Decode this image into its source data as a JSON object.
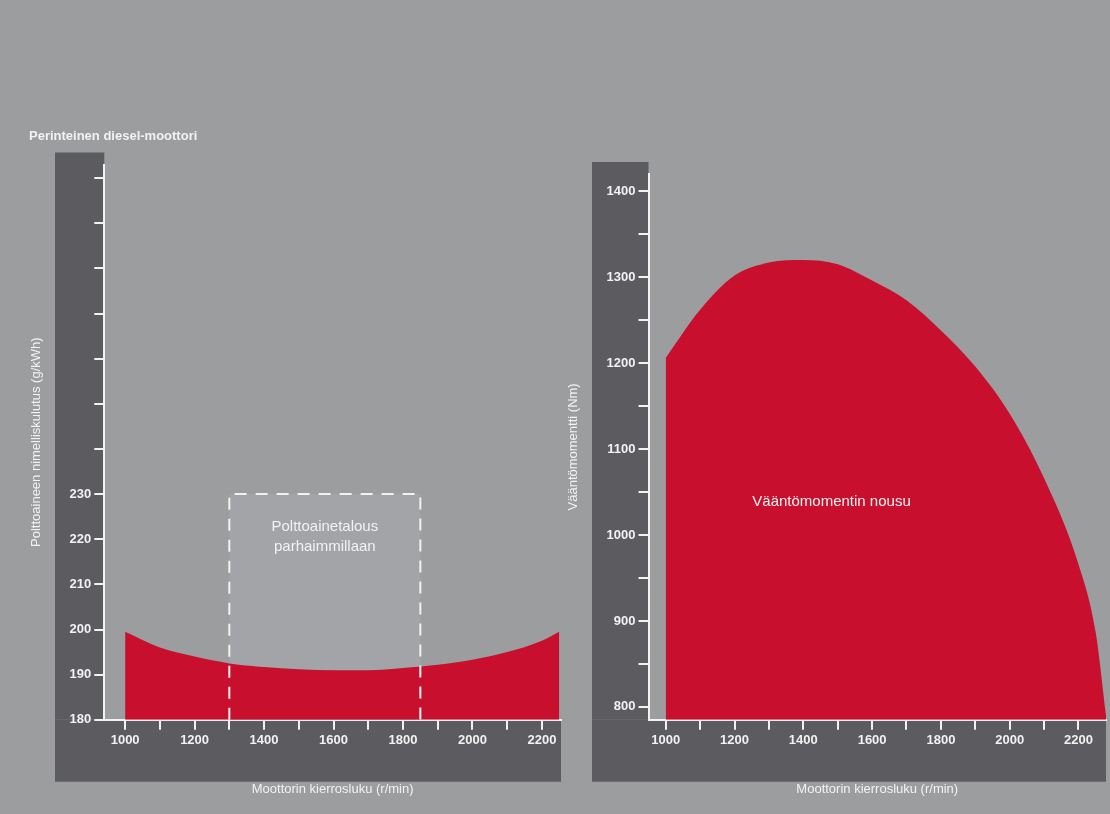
{
  "chart_data": [
    {
      "type": "area",
      "title": "Perinteinen diesel-moottori",
      "xlabel": "Moottorin kierrosluku (r/min)",
      "ylabel": "Polttoaineen nimelliskulutus (g/kWh)",
      "x": [
        1000,
        1100,
        1200,
        1300,
        1400,
        1500,
        1600,
        1700,
        1800,
        1900,
        2000,
        2100,
        2200,
        2250
      ],
      "values": [
        199.5,
        196,
        194,
        192.5,
        191.7,
        191.2,
        191,
        191,
        191.5,
        192.2,
        193.3,
        195,
        197.5,
        199.5
      ],
      "color": "#c8102e",
      "grid": false,
      "xlim": [
        940,
        2255
      ],
      "ylim": [
        180,
        303
      ],
      "xticks": [
        1000,
        {
          "value": 1100,
          "label": null
        },
        1200,
        {
          "value": 1300,
          "label": null
        },
        1400,
        {
          "value": 1500,
          "label": null
        },
        1600,
        {
          "value": 1700,
          "label": null
        },
        1800,
        {
          "value": 1900,
          "label": null
        },
        2000,
        {
          "value": 2100,
          "label": null
        },
        2200
      ],
      "yticks": [
        180,
        190,
        200,
        210,
        220,
        230,
        {
          "value": 240,
          "label": null
        },
        {
          "value": 250,
          "label": null
        },
        {
          "value": 260,
          "label": null
        },
        {
          "value": 270,
          "label": null
        },
        {
          "value": 280,
          "label": null
        },
        {
          "value": 290,
          "label": null
        },
        {
          "value": 300,
          "label": null
        }
      ],
      "bands": [
        {
          "axis": "x",
          "from": 1300,
          "to": 1850,
          "label": "Polttoainetalous parhaimmillaan",
          "color": "#a2a4a7"
        }
      ]
    },
    {
      "type": "area",
      "xlabel": "Moottorin kierrosluku (r/min)",
      "ylabel": "Vääntömomentti (Nm)",
      "x": [
        1000,
        1100,
        1200,
        1300,
        1400,
        1500,
        1600,
        1700,
        1800,
        1900,
        2000,
        2100,
        2200,
        2250,
        2280
      ],
      "values": [
        1206,
        1262,
        1302,
        1317,
        1320,
        1315,
        1296,
        1273,
        1238,
        1196,
        1141,
        1066,
        966,
        887,
        790
      ],
      "color": "#c8102e",
      "grid": false,
      "xlim": [
        950,
        2280
      ],
      "ylim": [
        785,
        1420
      ],
      "xticks": [
        1000,
        {
          "value": 1100,
          "label": null
        },
        1200,
        {
          "value": 1300,
          "label": null
        },
        1400,
        {
          "value": 1500,
          "label": null
        },
        1600,
        {
          "value": 1700,
          "label": null
        },
        1800,
        {
          "value": 1900,
          "label": null
        },
        2000,
        {
          "value": 2100,
          "label": null
        },
        2200
      ],
      "yticks": [
        800,
        {
          "value": 850,
          "label": null
        },
        900,
        {
          "value": 950,
          "label": null
        },
        1000,
        {
          "value": 1050,
          "label": null
        },
        1100,
        {
          "value": 1150,
          "label": null
        },
        1200,
        {
          "value": 1250,
          "label": null
        },
        1300,
        {
          "value": 1350,
          "label": null
        },
        1400
      ],
      "annotations": [
        "Vääntömomentin nousu"
      ]
    }
  ]
}
